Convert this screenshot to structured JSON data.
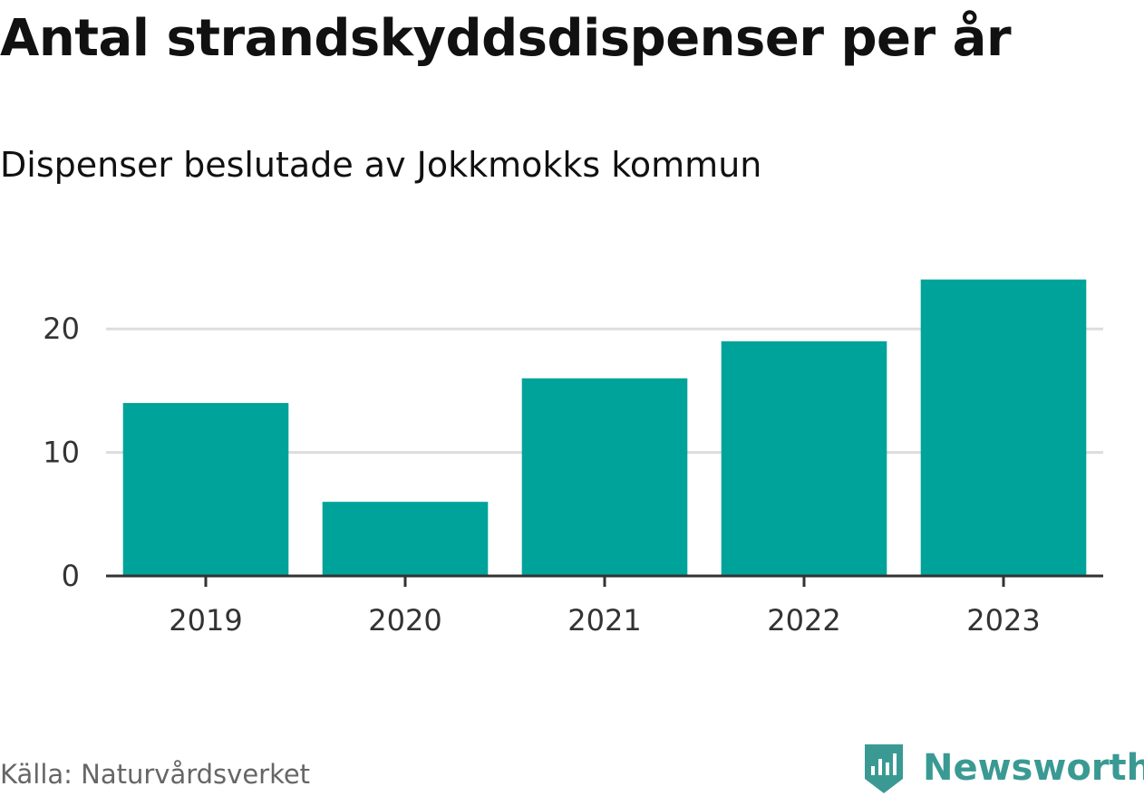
{
  "chart_data": {
    "type": "bar",
    "title": "Antal strandskyddsdispenser per år",
    "subtitle": "Dispenser beslutade av Jokkmokks kommun",
    "xlabel": "",
    "ylabel": "",
    "categories": [
      "2019",
      "2020",
      "2021",
      "2022",
      "2023"
    ],
    "values": [
      14,
      6,
      16,
      19,
      24
    ],
    "ylim": [
      0,
      25
    ],
    "yticks": [
      0,
      10,
      20
    ],
    "grid": true,
    "legend": "none",
    "bar_color": "#00a39a"
  },
  "footer": {
    "source": "Källa: Naturvårdsverket",
    "brand": "Newsworthy",
    "brand_color": "#3a9a93"
  }
}
